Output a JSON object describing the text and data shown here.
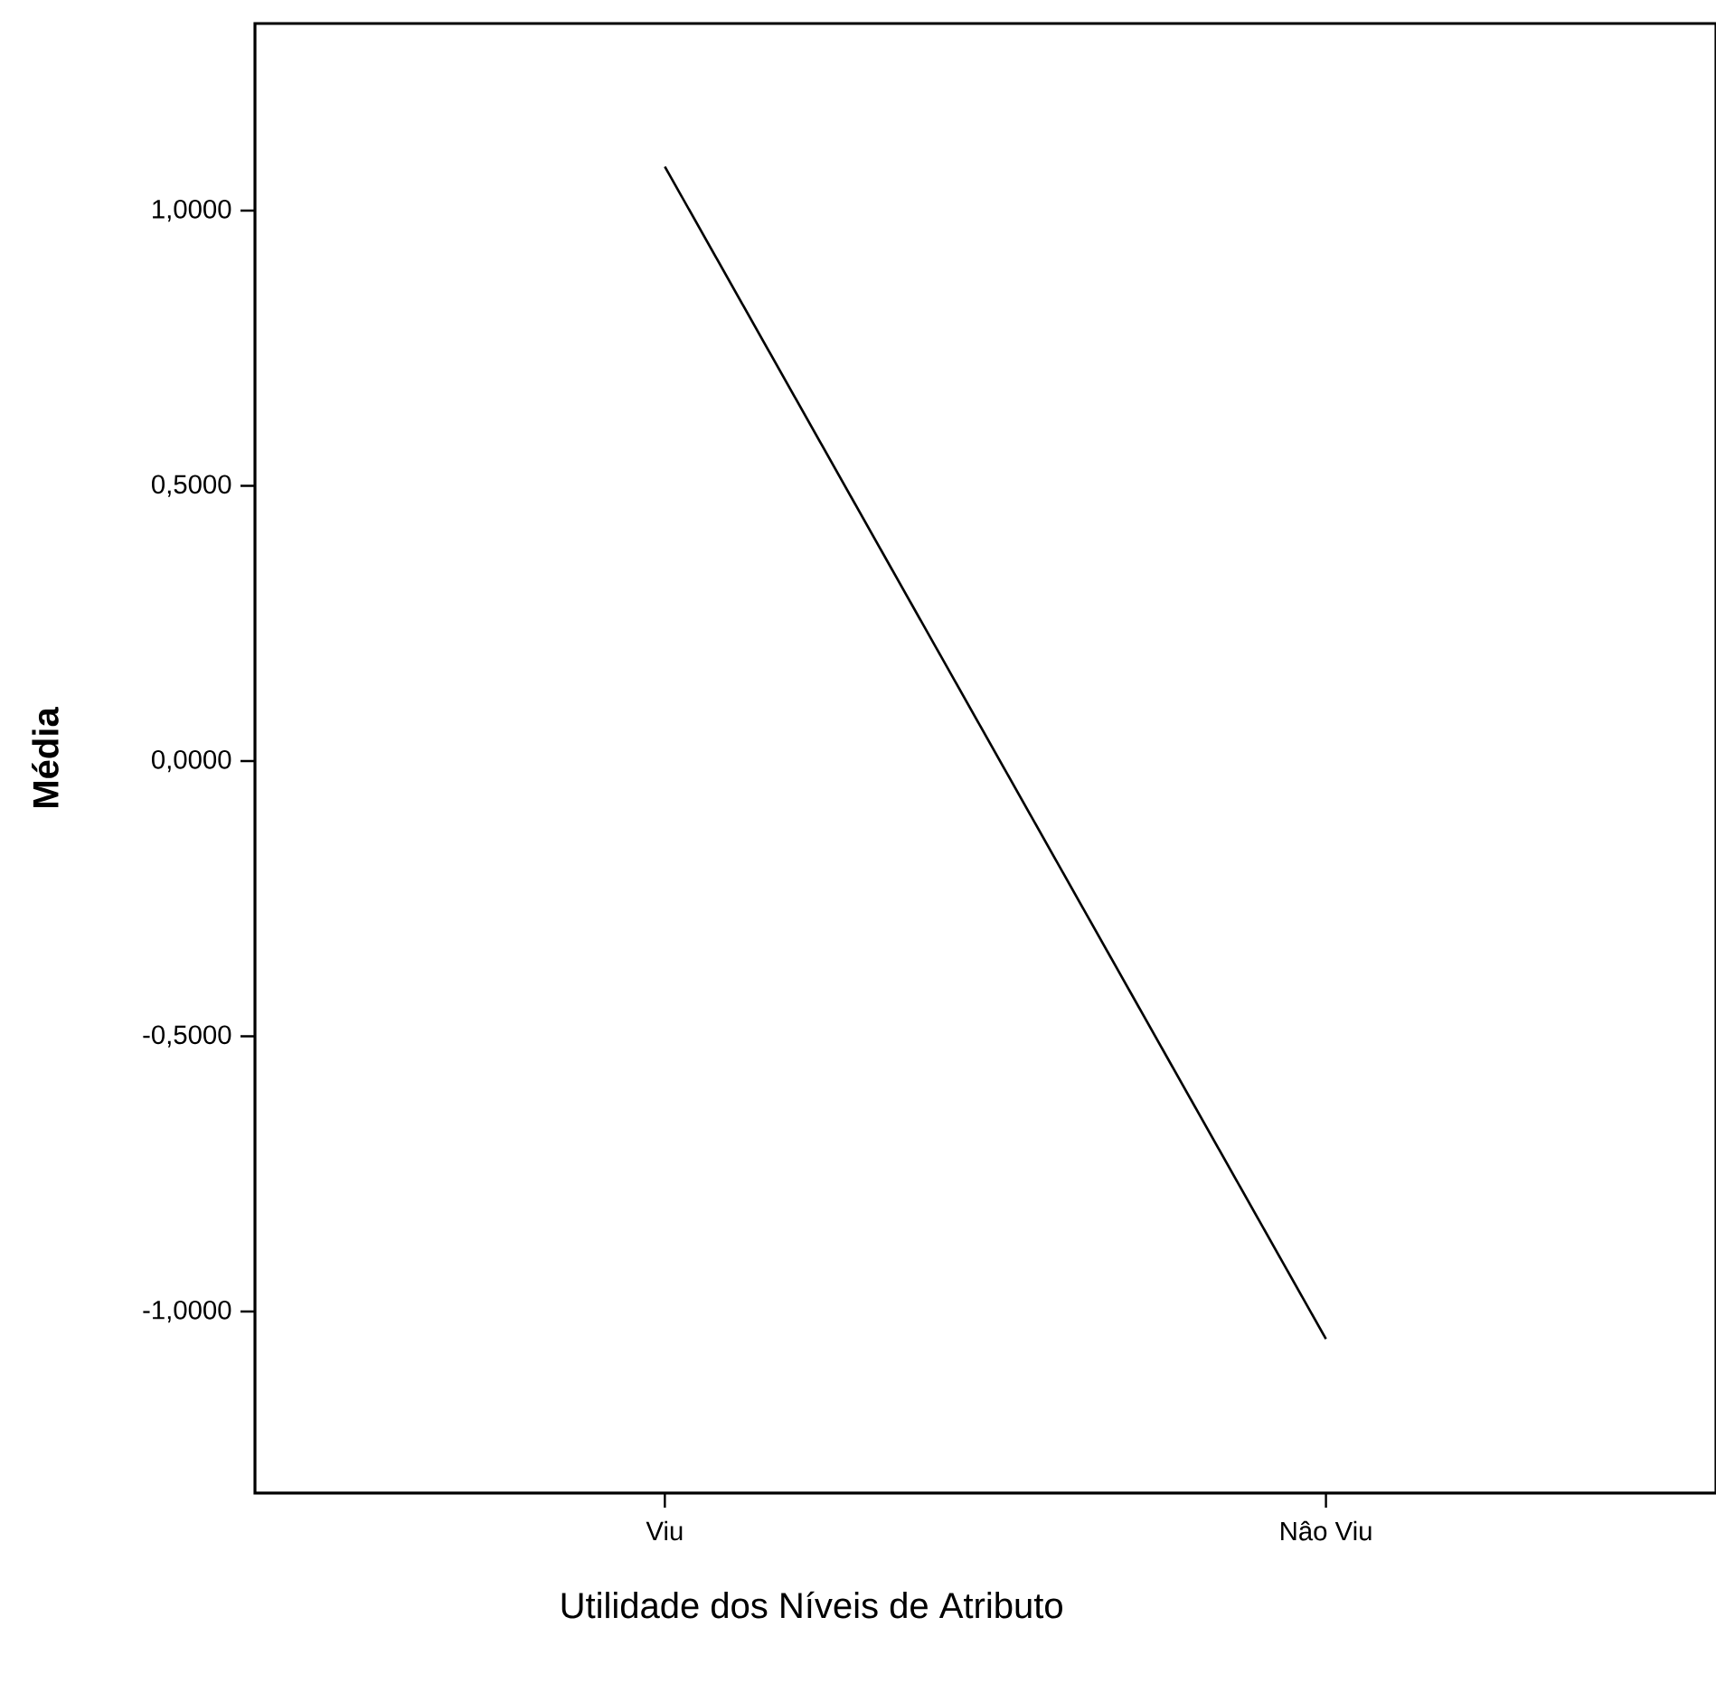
{
  "chart_data": {
    "type": "line",
    "xlabel": "Utilidade dos Níveis de Atributo",
    "ylabel": "Média",
    "categories": [
      "Viu",
      "Nâo Viu"
    ],
    "values": [
      1.08,
      -1.05
    ],
    "color": "#000000",
    "ylim": [
      -1.33,
      1.34
    ],
    "yticks": [
      {
        "value": -1,
        "label": "-1,0000"
      },
      {
        "value": -0.5,
        "label": "-0,5000"
      },
      {
        "value": 0,
        "label": "0,0000"
      },
      {
        "value": 0.5,
        "label": "0,5000"
      },
      {
        "value": 1,
        "label": "1,0000"
      }
    ]
  }
}
